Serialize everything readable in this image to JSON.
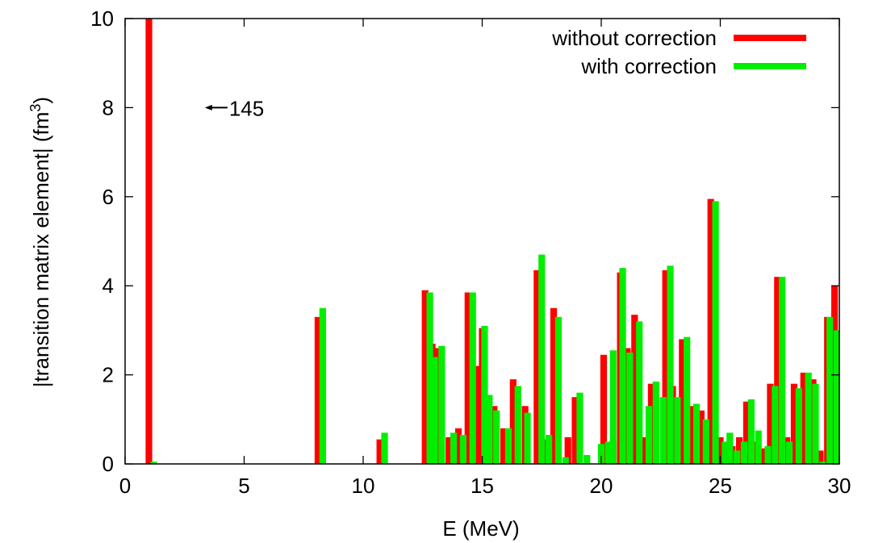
{
  "chart_data": {
    "type": "bar",
    "xlabel": "E (MeV)",
    "ylabel": "|transition matrix element| (fm",
    "ylabel_sup": "3",
    "ylabel_close": ")",
    "xlim": [
      0,
      30
    ],
    "ylim": [
      0,
      10
    ],
    "xticks": [
      "0",
      "5",
      "10",
      "15",
      "20",
      "25",
      "30"
    ],
    "yticks": [
      "0",
      "2",
      "4",
      "6",
      "8",
      "10"
    ],
    "annotation": {
      "text": "145",
      "x": 4.3,
      "y": 8
    },
    "legend_position": "top-right",
    "colors": {
      "without": "#ff0000",
      "with": "#00ee00"
    },
    "series": [
      {
        "name": "without correction",
        "points": [
          [
            1.0,
            10.0
          ],
          [
            8.1,
            3.3
          ],
          [
            10.7,
            0.55
          ],
          [
            12.6,
            3.9
          ],
          [
            12.9,
            2.7
          ],
          [
            13.1,
            2.6
          ],
          [
            13.6,
            0.6
          ],
          [
            14.0,
            0.8
          ],
          [
            14.4,
            3.85
          ],
          [
            14.8,
            2.2
          ],
          [
            15.0,
            3.05
          ],
          [
            15.5,
            1.3
          ],
          [
            15.9,
            0.8
          ],
          [
            16.3,
            1.9
          ],
          [
            16.8,
            1.3
          ],
          [
            17.3,
            4.35
          ],
          [
            17.7,
            0.55
          ],
          [
            18.0,
            3.5
          ],
          [
            18.6,
            0.6
          ],
          [
            18.9,
            1.5
          ],
          [
            20.1,
            2.45
          ],
          [
            20.5,
            0.5
          ],
          [
            20.8,
            4.3
          ],
          [
            21.1,
            2.6
          ],
          [
            21.4,
            3.35
          ],
          [
            21.8,
            0.6
          ],
          [
            22.1,
            1.8
          ],
          [
            22.7,
            4.35
          ],
          [
            23.0,
            1.75
          ],
          [
            23.4,
            2.8
          ],
          [
            23.8,
            1.3
          ],
          [
            24.2,
            1.2
          ],
          [
            24.6,
            5.95
          ],
          [
            25.0,
            0.6
          ],
          [
            25.5,
            0.4
          ],
          [
            25.8,
            0.6
          ],
          [
            26.1,
            1.4
          ],
          [
            26.5,
            0.5
          ],
          [
            26.8,
            0.35
          ],
          [
            27.1,
            1.8
          ],
          [
            27.4,
            4.2
          ],
          [
            27.8,
            0.6
          ],
          [
            28.1,
            1.8
          ],
          [
            28.5,
            2.05
          ],
          [
            28.9,
            1.9
          ],
          [
            29.2,
            0.3
          ],
          [
            29.5,
            3.3
          ],
          [
            29.8,
            4.0
          ],
          [
            30.0,
            0.65
          ]
        ]
      },
      {
        "name": "with correction",
        "points": [
          [
            1.2,
            0.05
          ],
          [
            8.3,
            3.5
          ],
          [
            10.9,
            0.7
          ],
          [
            12.8,
            3.85
          ],
          [
            13.0,
            2.4
          ],
          [
            13.3,
            2.65
          ],
          [
            13.8,
            0.7
          ],
          [
            14.2,
            0.65
          ],
          [
            14.6,
            3.85
          ],
          [
            15.1,
            3.1
          ],
          [
            15.3,
            1.55
          ],
          [
            15.6,
            1.2
          ],
          [
            16.1,
            0.8
          ],
          [
            16.5,
            1.75
          ],
          [
            16.9,
            1.15
          ],
          [
            17.5,
            4.7
          ],
          [
            17.8,
            0.65
          ],
          [
            18.2,
            3.3
          ],
          [
            18.5,
            0.15
          ],
          [
            19.1,
            1.6
          ],
          [
            19.4,
            0.2
          ],
          [
            20.0,
            0.45
          ],
          [
            20.3,
            0.5
          ],
          [
            20.5,
            2.55
          ],
          [
            20.9,
            4.4
          ],
          [
            21.2,
            2.5
          ],
          [
            21.6,
            3.2
          ],
          [
            22.0,
            1.3
          ],
          [
            22.3,
            1.85
          ],
          [
            22.6,
            1.5
          ],
          [
            22.9,
            4.45
          ],
          [
            23.2,
            1.5
          ],
          [
            23.6,
            2.85
          ],
          [
            24.0,
            1.35
          ],
          [
            24.4,
            1.0
          ],
          [
            24.8,
            5.9
          ],
          [
            25.2,
            0.5
          ],
          [
            25.4,
            0.7
          ],
          [
            25.7,
            0.3
          ],
          [
            26.0,
            0.5
          ],
          [
            26.3,
            1.45
          ],
          [
            26.6,
            0.75
          ],
          [
            27.0,
            0.4
          ],
          [
            27.3,
            1.75
          ],
          [
            27.6,
            4.2
          ],
          [
            27.9,
            0.5
          ],
          [
            28.3,
            1.7
          ],
          [
            28.7,
            2.05
          ],
          [
            29.0,
            1.8
          ],
          [
            29.3,
            0.05
          ],
          [
            29.6,
            3.3
          ],
          [
            29.9,
            3.0
          ]
        ]
      }
    ]
  }
}
